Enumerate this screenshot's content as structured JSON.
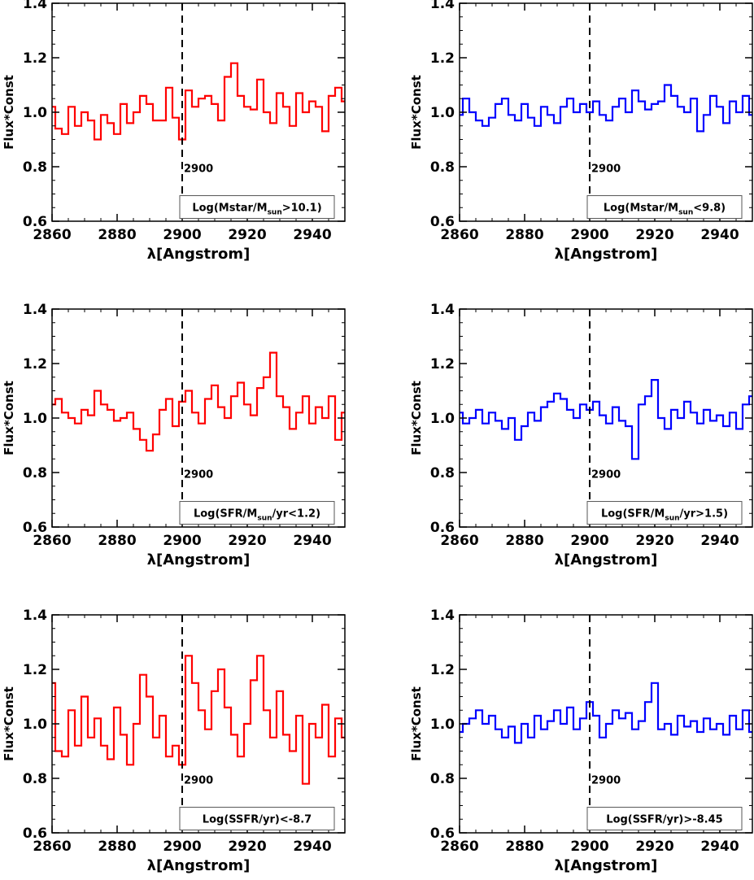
{
  "chart_data": [
    {
      "type": "line",
      "step": true,
      "color": "#ff0000",
      "xlabel": "λ[Angstrom]",
      "ylabel": "Flux*Const",
      "xlim": [
        2860,
        2950
      ],
      "ylim": [
        0.6,
        1.4
      ],
      "xticks": [
        "2860",
        "2880",
        "2900",
        "2920",
        "2940"
      ],
      "yticks": [
        "0.6",
        "0.8",
        "1.0",
        "1.2",
        "1.4"
      ],
      "vline": 2900,
      "vline_label": "2900",
      "legend": {
        "pre": "Log(Mstar/M",
        "sub": "sun",
        "post": ">10.1)"
      },
      "x": [
        2860,
        2862,
        2864,
        2866,
        2868,
        2870,
        2872,
        2874,
        2876,
        2878,
        2880,
        2882,
        2884,
        2886,
        2888,
        2890,
        2892,
        2894,
        2896,
        2898,
        2900,
        2902,
        2904,
        2906,
        2908,
        2910,
        2912,
        2914,
        2916,
        2918,
        2920,
        2922,
        2924,
        2926,
        2928,
        2930,
        2932,
        2934,
        2936,
        2938,
        2940,
        2942,
        2944,
        2946,
        2948,
        2950
      ],
      "y": [
        1.02,
        0.94,
        0.92,
        1.02,
        0.95,
        1.0,
        0.97,
        0.9,
        0.99,
        0.96,
        0.92,
        1.03,
        0.96,
        1.0,
        1.06,
        1.03,
        0.97,
        0.97,
        1.09,
        0.98,
        0.9,
        1.08,
        1.02,
        1.05,
        1.06,
        1.03,
        0.97,
        1.13,
        1.18,
        1.06,
        1.02,
        1.01,
        1.12,
        1.0,
        0.96,
        1.07,
        1.02,
        0.95,
        1.07,
        1.0,
        1.04,
        1.02,
        0.93,
        1.06,
        1.09,
        1.04
      ]
    },
    {
      "type": "line",
      "step": true,
      "color": "#0000ff",
      "xlabel": "λ[Angstrom]",
      "ylabel": "Flux*Const",
      "xlim": [
        2860,
        2950
      ],
      "ylim": [
        0.6,
        1.4
      ],
      "xticks": [
        "2860",
        "2880",
        "2900",
        "2920",
        "2940"
      ],
      "yticks": [
        "0.6",
        "0.8",
        "1.0",
        "1.2",
        "1.4"
      ],
      "vline": 2900,
      "vline_label": "2900",
      "legend": {
        "pre": "Log(Mstar/M",
        "sub": "sun",
        "post": "<9.8)"
      },
      "x": [
        2860,
        2862,
        2864,
        2866,
        2868,
        2870,
        2872,
        2874,
        2876,
        2878,
        2880,
        2882,
        2884,
        2886,
        2888,
        2890,
        2892,
        2894,
        2896,
        2898,
        2900,
        2902,
        2904,
        2906,
        2908,
        2910,
        2912,
        2914,
        2916,
        2918,
        2920,
        2922,
        2924,
        2926,
        2928,
        2930,
        2932,
        2934,
        2936,
        2938,
        2940,
        2942,
        2944,
        2946,
        2948,
        2950
      ],
      "y": [
        0.99,
        1.05,
        1.0,
        0.97,
        0.95,
        0.98,
        1.03,
        1.05,
        0.99,
        0.97,
        1.03,
        0.98,
        0.95,
        1.02,
        0.99,
        0.96,
        1.02,
        1.05,
        1.0,
        1.03,
        1.0,
        1.04,
        0.99,
        0.97,
        1.02,
        1.05,
        1.0,
        1.08,
        1.04,
        1.01,
        1.03,
        1.04,
        1.1,
        1.06,
        1.02,
        1.0,
        1.05,
        0.93,
        0.99,
        1.06,
        1.02,
        0.96,
        1.04,
        1.0,
        1.06,
        0.99
      ]
    },
    {
      "type": "line",
      "step": true,
      "color": "#ff0000",
      "xlabel": "λ[Angstrom]",
      "ylabel": "Flux*Const",
      "xlim": [
        2860,
        2950
      ],
      "ylim": [
        0.6,
        1.4
      ],
      "xticks": [
        "2860",
        "2880",
        "2900",
        "2920",
        "2940"
      ],
      "yticks": [
        "0.6",
        "0.8",
        "1.0",
        "1.2",
        "1.4"
      ],
      "vline": 2900,
      "vline_label": "2900",
      "legend": {
        "pre": "Log(SFR/M",
        "sub": "sun",
        "post": "/yr<1.2)"
      },
      "x": [
        2860,
        2862,
        2864,
        2866,
        2868,
        2870,
        2872,
        2874,
        2876,
        2878,
        2880,
        2882,
        2884,
        2886,
        2888,
        2890,
        2892,
        2894,
        2896,
        2898,
        2900,
        2902,
        2904,
        2906,
        2908,
        2910,
        2912,
        2914,
        2916,
        2918,
        2920,
        2922,
        2924,
        2926,
        2928,
        2930,
        2932,
        2934,
        2936,
        2938,
        2940,
        2942,
        2944,
        2946,
        2948,
        2950
      ],
      "y": [
        1.05,
        1.07,
        1.02,
        1.0,
        0.98,
        1.03,
        1.01,
        1.1,
        1.05,
        1.03,
        0.99,
        1.0,
        1.02,
        0.96,
        0.92,
        0.88,
        0.94,
        1.03,
        1.07,
        0.97,
        1.06,
        1.1,
        1.02,
        0.98,
        1.07,
        1.12,
        1.04,
        1.0,
        1.08,
        1.13,
        1.05,
        1.01,
        1.11,
        1.15,
        1.24,
        1.08,
        1.04,
        0.96,
        1.02,
        1.08,
        0.98,
        1.04,
        1.0,
        1.08,
        0.92,
        1.02
      ]
    },
    {
      "type": "line",
      "step": true,
      "color": "#0000ff",
      "xlabel": "λ[Angstrom]",
      "ylabel": "Flux*Const",
      "xlim": [
        2860,
        2950
      ],
      "ylim": [
        0.6,
        1.4
      ],
      "xticks": [
        "2860",
        "2880",
        "2900",
        "2920",
        "2940"
      ],
      "yticks": [
        "0.6",
        "0.8",
        "1.0",
        "1.2",
        "1.4"
      ],
      "vline": 2900,
      "vline_label": "2900",
      "legend": {
        "pre": "Log(SFR/M",
        "sub": "sun",
        "post": "/yr>1.5)"
      },
      "x": [
        2860,
        2862,
        2864,
        2866,
        2868,
        2870,
        2872,
        2874,
        2876,
        2878,
        2880,
        2882,
        2884,
        2886,
        2888,
        2890,
        2892,
        2894,
        2896,
        2898,
        2900,
        2902,
        2904,
        2906,
        2908,
        2910,
        2912,
        2914,
        2916,
        2918,
        2920,
        2922,
        2924,
        2926,
        2928,
        2930,
        2932,
        2934,
        2936,
        2938,
        2940,
        2942,
        2944,
        2946,
        2948,
        2950
      ],
      "y": [
        1.02,
        0.98,
        1.0,
        1.03,
        0.98,
        1.02,
        0.99,
        0.96,
        1.0,
        0.92,
        0.97,
        1.02,
        0.99,
        1.04,
        1.06,
        1.09,
        1.07,
        1.03,
        1.0,
        1.05,
        1.03,
        1.06,
        1.01,
        0.98,
        1.04,
        0.99,
        0.97,
        0.85,
        1.05,
        1.08,
        1.14,
        1.0,
        0.96,
        1.03,
        1.0,
        1.06,
        1.02,
        0.98,
        1.03,
        0.99,
        1.01,
        0.97,
        1.02,
        0.96,
        1.05,
        1.08
      ]
    },
    {
      "type": "line",
      "step": true,
      "color": "#ff0000",
      "xlabel": "λ[Angstrom]",
      "ylabel": "Flux*Const",
      "xlim": [
        2860,
        2950
      ],
      "ylim": [
        0.6,
        1.4
      ],
      "xticks": [
        "2860",
        "2880",
        "2900",
        "2920",
        "2940"
      ],
      "yticks": [
        "0.6",
        "0.8",
        "1.0",
        "1.2",
        "1.4"
      ],
      "vline": 2900,
      "vline_label": "2900",
      "legend": {
        "pre": "Log(SSFR/yr)<-8.7",
        "sub": "",
        "post": ""
      },
      "x": [
        2860,
        2862,
        2864,
        2866,
        2868,
        2870,
        2872,
        2874,
        2876,
        2878,
        2880,
        2882,
        2884,
        2886,
        2888,
        2890,
        2892,
        2894,
        2896,
        2898,
        2900,
        2902,
        2904,
        2906,
        2908,
        2910,
        2912,
        2914,
        2916,
        2918,
        2920,
        2922,
        2924,
        2926,
        2928,
        2930,
        2932,
        2934,
        2936,
        2938,
        2940,
        2942,
        2944,
        2946,
        2948,
        2950
      ],
      "y": [
        1.15,
        0.9,
        0.88,
        1.05,
        0.92,
        1.1,
        0.95,
        1.02,
        0.92,
        0.87,
        1.06,
        0.96,
        0.85,
        1.0,
        1.18,
        1.1,
        0.95,
        1.03,
        0.88,
        0.92,
        0.85,
        1.25,
        1.15,
        1.05,
        0.98,
        1.12,
        1.2,
        1.06,
        0.96,
        0.88,
        1.0,
        1.16,
        1.25,
        1.05,
        0.95,
        1.12,
        0.96,
        0.9,
        1.03,
        0.78,
        1.0,
        0.95,
        1.07,
        0.88,
        1.02,
        0.95
      ]
    },
    {
      "type": "line",
      "step": true,
      "color": "#0000ff",
      "xlabel": "λ[Angstrom]",
      "ylabel": "Flux*Const",
      "xlim": [
        2860,
        2950
      ],
      "ylim": [
        0.6,
        1.4
      ],
      "xticks": [
        "2860",
        "2880",
        "2900",
        "2920",
        "2940"
      ],
      "yticks": [
        "0.6",
        "0.8",
        "1.0",
        "1.2",
        "1.4"
      ],
      "vline": 2900,
      "vline_label": "2900",
      "legend": {
        "pre": "Log(SSFR/yr)>-8.45",
        "sub": "",
        "post": ""
      },
      "x": [
        2860,
        2862,
        2864,
        2866,
        2868,
        2870,
        2872,
        2874,
        2876,
        2878,
        2880,
        2882,
        2884,
        2886,
        2888,
        2890,
        2892,
        2894,
        2896,
        2898,
        2900,
        2902,
        2904,
        2906,
        2908,
        2910,
        2912,
        2914,
        2916,
        2918,
        2920,
        2922,
        2924,
        2926,
        2928,
        2930,
        2932,
        2934,
        2936,
        2938,
        2940,
        2942,
        2944,
        2946,
        2948,
        2950
      ],
      "y": [
        0.97,
        1.0,
        1.02,
        1.05,
        1.0,
        1.03,
        0.98,
        0.95,
        0.99,
        0.93,
        1.0,
        0.95,
        1.03,
        0.98,
        1.01,
        1.05,
        1.0,
        1.06,
        0.98,
        1.02,
        1.08,
        1.03,
        0.95,
        1.0,
        1.05,
        1.02,
        1.04,
        0.98,
        1.01,
        1.08,
        1.15,
        0.98,
        1.0,
        0.96,
        1.03,
        0.99,
        1.01,
        0.97,
        1.02,
        0.98,
        1.0,
        0.96,
        1.03,
        0.98,
        1.05,
        0.97
      ]
    }
  ]
}
